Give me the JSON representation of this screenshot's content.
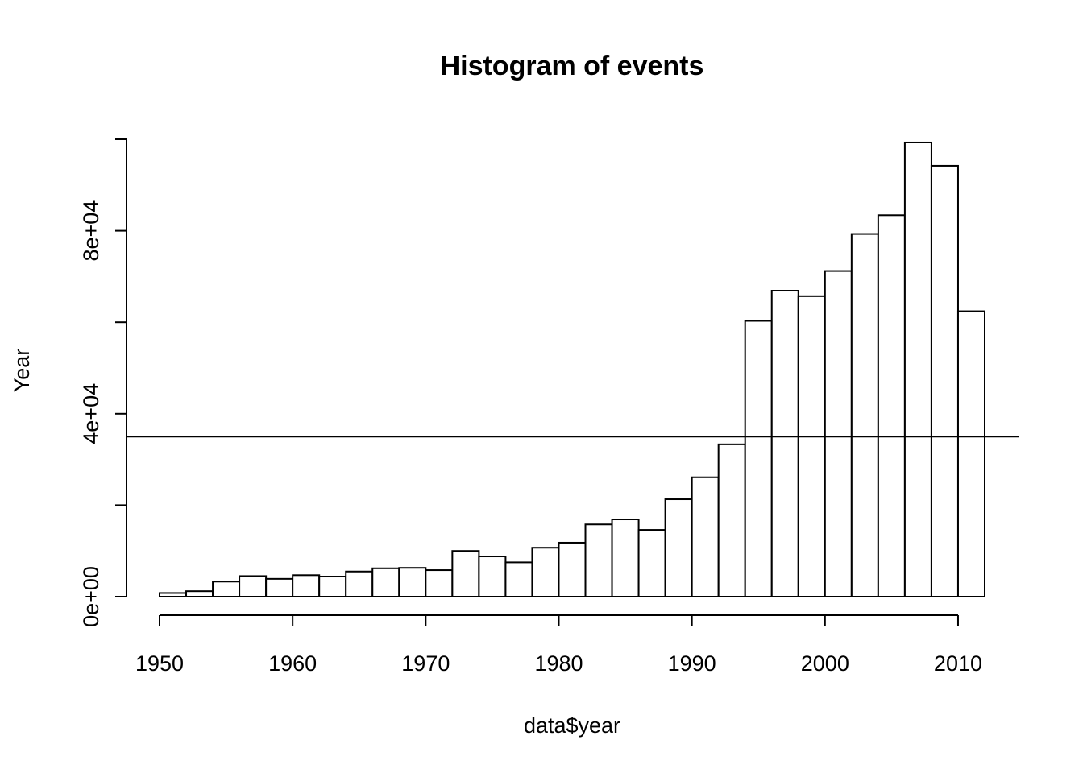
{
  "chart_data": {
    "type": "bar",
    "title": "Histogram of events",
    "xlabel": "data$year",
    "ylabel": "Year",
    "bin_starts": [
      1950,
      1952,
      1954,
      1956,
      1958,
      1960,
      1962,
      1964,
      1966,
      1968,
      1970,
      1972,
      1974,
      1976,
      1978,
      1980,
      1982,
      1984,
      1986,
      1988,
      1990,
      1992,
      1994,
      1996,
      1998,
      2000,
      2002,
      2004,
      2006,
      2008,
      2010
    ],
    "bin_width": 2,
    "values": [
      800,
      1200,
      3300,
      4500,
      3900,
      4700,
      4400,
      5500,
      6200,
      6300,
      5800,
      10000,
      8800,
      7500,
      10700,
      11800,
      15800,
      16900,
      14600,
      21300,
      26100,
      33300,
      60300,
      66900,
      65700,
      71200,
      79300,
      83400,
      99300,
      94200,
      62400
    ],
    "xlim": [
      1950,
      2012
    ],
    "ylim": [
      0,
      100000
    ],
    "x_ticks": [
      1950,
      1960,
      1970,
      1980,
      1990,
      2000,
      2010
    ],
    "x_tick_labels": [
      "1950",
      "1960",
      "1970",
      "1980",
      "1990",
      "2000",
      "2010"
    ],
    "y_ticks": [
      0,
      20000,
      40000,
      60000,
      80000,
      100000
    ],
    "y_tick_labels": [
      "0e+00",
      "",
      "4e+04",
      "",
      "8e+04",
      ""
    ],
    "hline": 35000,
    "grid": false,
    "colors": {
      "bar_fill": "#ffffff",
      "stroke": "#000000"
    }
  }
}
